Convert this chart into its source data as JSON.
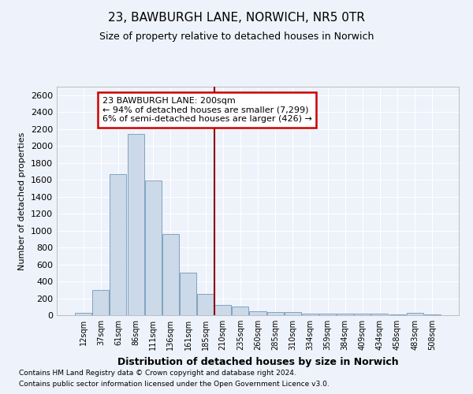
{
  "title": "23, BAWBURGH LANE, NORWICH, NR5 0TR",
  "subtitle": "Size of property relative to detached houses in Norwich",
  "xlabel": "Distribution of detached houses by size in Norwich",
  "ylabel": "Number of detached properties",
  "bar_color": "#ccd9e8",
  "bar_edge_color": "#7099bb",
  "background_color": "#eef2fa",
  "plot_bg_color": "#eef2fa",
  "grid_color": "#ffffff",
  "categories": [
    "12sqm",
    "37sqm",
    "61sqm",
    "86sqm",
    "111sqm",
    "136sqm",
    "161sqm",
    "185sqm",
    "210sqm",
    "235sqm",
    "260sqm",
    "285sqm",
    "310sqm",
    "334sqm",
    "359sqm",
    "384sqm",
    "409sqm",
    "434sqm",
    "458sqm",
    "483sqm",
    "508sqm"
  ],
  "values": [
    25,
    300,
    1670,
    2140,
    1595,
    960,
    505,
    250,
    125,
    100,
    50,
    40,
    35,
    20,
    20,
    20,
    20,
    20,
    5,
    25,
    5
  ],
  "ylim": [
    0,
    2700
  ],
  "yticks": [
    0,
    200,
    400,
    600,
    800,
    1000,
    1200,
    1400,
    1600,
    1800,
    2000,
    2200,
    2400,
    2600
  ],
  "vline_x": 7.5,
  "vline_color": "#8b0000",
  "annotation_title": "23 BAWBURGH LANE: 200sqm",
  "annotation_line1": "← 94% of detached houses are smaller (7,299)",
  "annotation_line2": "6% of semi-detached houses are larger (426) →",
  "annotation_box_color": "#ffffff",
  "annotation_box_edge": "#cc0000",
  "footer1": "Contains HM Land Registry data © Crown copyright and database right 2024.",
  "footer2": "Contains public sector information licensed under the Open Government Licence v3.0.",
  "figsize": [
    6.0,
    5.0
  ],
  "dpi": 100
}
